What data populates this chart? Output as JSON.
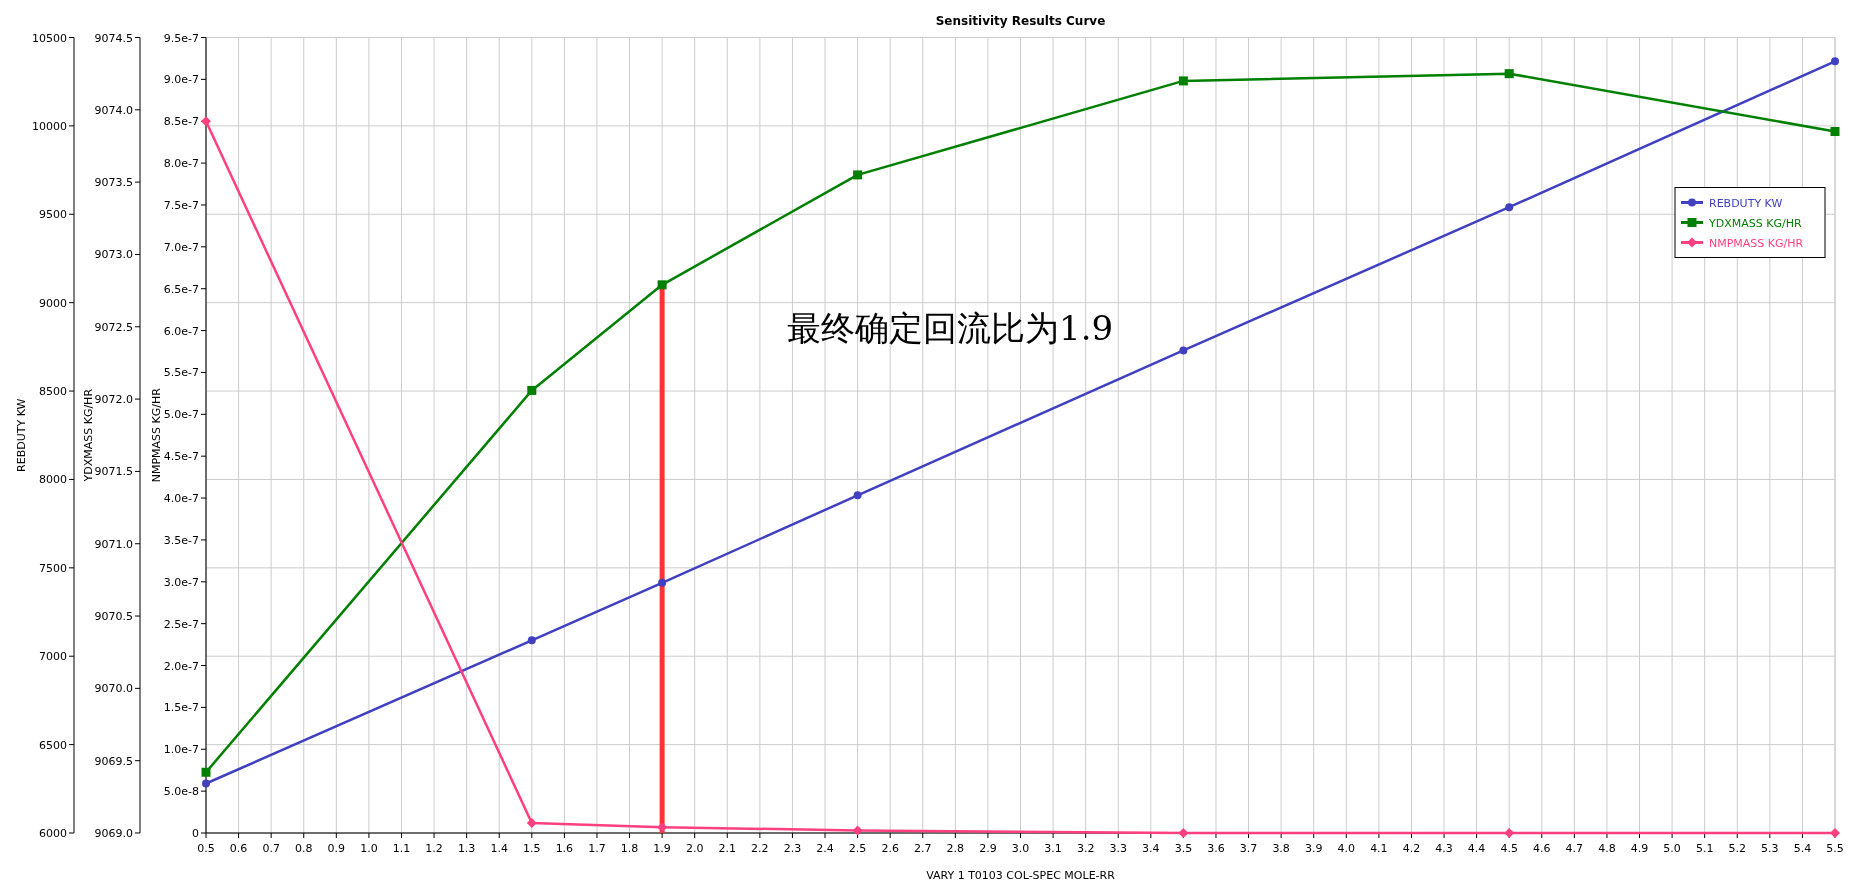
{
  "chart_data": {
    "type": "line",
    "title": "Sensitivity Results Curve",
    "xlabel": "VARY   1 T0103 COL-SPEC MOLE-RR",
    "ylabel": "REBDUTY KW",
    "y2label": "YDXMASS KG/HR",
    "y3label": "NMPMASS KG/HR",
    "x": [
      0.5,
      1.5,
      1.9,
      2.5,
      3.5,
      4.5,
      5.5
    ],
    "xlim": [
      0.5,
      5.5
    ],
    "xticks": [
      0.5,
      0.6,
      0.7,
      0.8,
      0.9,
      {
        "value": 1,
        "label": "1.0"
      },
      1.1,
      1.2,
      1.3,
      1.4,
      1.5,
      1.6,
      1.7,
      1.8,
      1.9,
      {
        "value": 2,
        "label": "2.0"
      },
      2.1,
      2.2,
      2.3,
      2.4,
      2.5,
      2.6,
      2.7,
      2.8,
      2.9,
      {
        "value": 3,
        "label": "3.0"
      },
      3.1,
      3.2,
      3.3,
      3.4,
      3.5,
      3.6,
      3.7,
      3.8,
      3.9,
      {
        "value": 4,
        "label": "4.0"
      },
      4.1,
      4.2,
      4.3,
      4.4,
      4.5,
      4.6,
      4.7,
      4.8,
      4.9,
      {
        "value": 5,
        "label": "5.0"
      },
      5.1,
      5.2,
      5.3,
      5.4,
      5.5
    ],
    "ylim": [
      6000,
      10500
    ],
    "yticks": [
      6000,
      6500,
      7000,
      7500,
      8000,
      8500,
      9000,
      9500,
      10000,
      10500
    ],
    "y2lim": [
      9069,
      9074.5
    ],
    "y2ticks": [
      {
        "value": 9069,
        "label": "9069.0"
      },
      9069.5,
      {
        "value": 9070,
        "label": "9070.0"
      },
      9070.5,
      {
        "value": 9071,
        "label": "9071.0"
      },
      9071.5,
      {
        "value": 9072,
        "label": "9072.0"
      },
      9072.5,
      {
        "value": 9073,
        "label": "9073.0"
      },
      9073.5,
      {
        "value": 9074,
        "label": "9074.0"
      },
      9074.5
    ],
    "y3lim": [
      0,
      9.5e-07
    ],
    "y3ticks": [
      0,
      {
        "value": 5e-08,
        "label": "5.0e-8"
      },
      {
        "value": 1e-07,
        "label": "1.0e-7"
      },
      {
        "value": 1.5e-07,
        "label": "1.5e-7"
      },
      {
        "value": 2e-07,
        "label": "2.0e-7"
      },
      {
        "value": 2.5e-07,
        "label": "2.5e-7"
      },
      {
        "value": 3e-07,
        "label": "3.0e-7"
      },
      {
        "value": 3.5e-07,
        "label": "3.5e-7"
      },
      {
        "value": 4e-07,
        "label": "4.0e-7"
      },
      {
        "value": 4.5e-07,
        "label": "4.5e-7"
      },
      {
        "value": 5e-07,
        "label": "5.0e-7"
      },
      {
        "value": 5.5e-07,
        "label": "5.5e-7"
      },
      {
        "value": 6e-07,
        "label": "6.0e-7"
      },
      {
        "value": 6.5e-07,
        "label": "6.5e-7"
      },
      {
        "value": 7e-07,
        "label": "7.0e-7"
      },
      {
        "value": 7.5e-07,
        "label": "7.5e-7"
      },
      {
        "value": 8e-07,
        "label": "8.0e-7"
      },
      {
        "value": 8.5e-07,
        "label": "8.5e-7"
      },
      {
        "value": 9e-07,
        "label": "9.0e-7"
      },
      {
        "value": 9.5e-07,
        "label": "9.5e-7"
      }
    ],
    "series": [
      {
        "name": "REBDUTY KW",
        "color": "#4040c0",
        "marker": "circle",
        "values": [
          6280,
          7090,
          7415,
          7910,
          8730,
          9540,
          10365
        ]
      },
      {
        "name": "YDXMASS KG/HR",
        "color": "#008000",
        "marker": "square",
        "axis": "y2",
        "values": [
          9069.42,
          9072.06,
          9072.79,
          9073.55,
          9074.2,
          9074.25,
          9073.85
        ]
      },
      {
        "name": "NMPMASS KG/HR",
        "color": "#ff4080",
        "marker": "diamond",
        "axis": "y3",
        "values": [
          8.5e-07,
          1.2e-08,
          7e-09,
          3e-09,
          0,
          0,
          0
        ]
      },
      {
        "type": "line",
        "color": "#ff3333",
        "marker": "none",
        "axis": "y3",
        "x": [
          1.9,
          1.9
        ],
        "values": [
          0,
          6.5e-07
        ]
      }
    ],
    "annotations": [
      "最终确定回流比为1.9"
    ],
    "grid": true,
    "legend": "top right"
  }
}
